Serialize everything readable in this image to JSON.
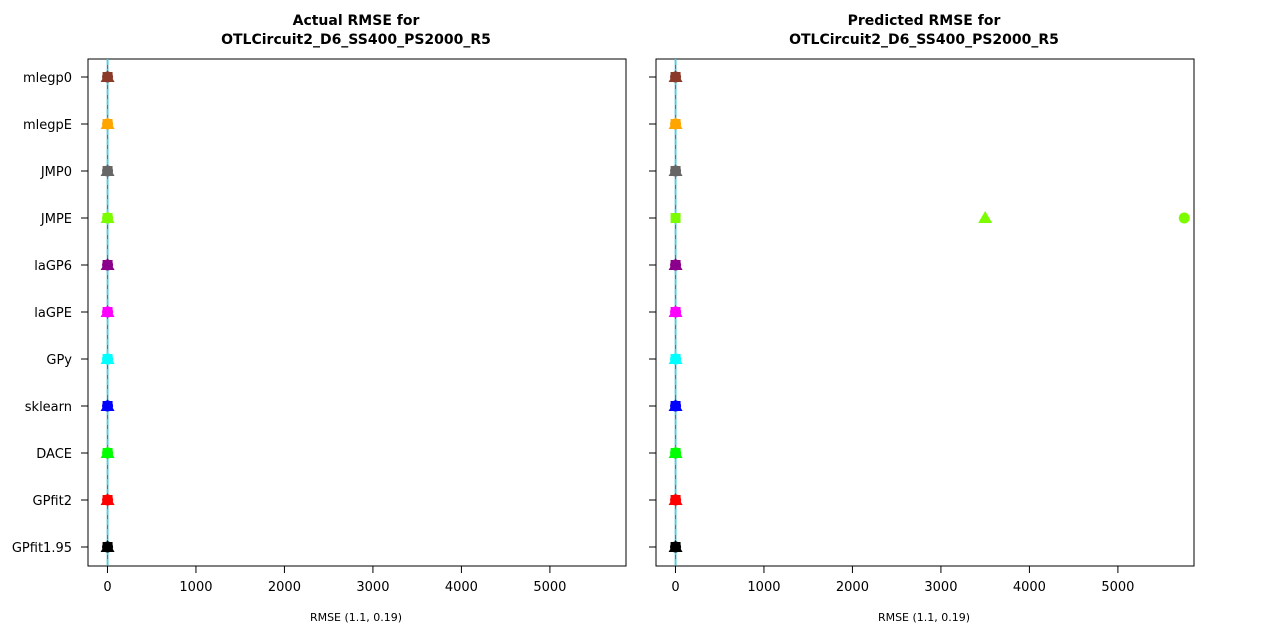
{
  "chart_data": [
    {
      "type": "scatter",
      "title_lines": [
        "Actual RMSE for",
        "OTLCircuit2_D6_SS400_PS2000_R5"
      ],
      "xlabel": "RMSE (1.1, 0.19)",
      "xlim": [
        -220,
        5860
      ],
      "xticks": [
        0,
        1000,
        2000,
        3000,
        4000,
        5000
      ],
      "categories": [
        "mlegp0",
        "mlegpE",
        "JMP0",
        "JMPE",
        "laGP6",
        "laGPE",
        "GPy",
        "sklearn",
        "DACE",
        "GPfit2",
        "GPfit1.95"
      ],
      "colors": [
        "#8b3a2a",
        "#ffa500",
        "#666666",
        "#7cfc00",
        "#8b008b",
        "#ff00ff",
        "#00ffff",
        "#0000ff",
        "#00ff00",
        "#ff0000",
        "#000000"
      ],
      "reference_line": 1.1,
      "series": [
        {
          "marker": "square",
          "values": [
            1.1,
            1.1,
            1.1,
            1.1,
            1.1,
            1.1,
            1.1,
            1.1,
            1.1,
            1.1,
            1.1
          ]
        },
        {
          "marker": "triangle",
          "values": [
            1.2,
            1.2,
            1.2,
            1.2,
            1.2,
            1.2,
            1.2,
            1.2,
            1.2,
            1.2,
            1.2
          ]
        },
        {
          "marker": "circle",
          "values": [
            1.0,
            1.0,
            1.0,
            1.0,
            1.0,
            1.0,
            1.0,
            1.0,
            1.0,
            1.0,
            1.0
          ]
        }
      ]
    },
    {
      "type": "scatter",
      "title_lines": [
        "Predicted RMSE for",
        "OTLCircuit2_D6_SS400_PS2000_R5"
      ],
      "xlabel": "RMSE (1.1, 0.19)",
      "xlim": [
        -220,
        5860
      ],
      "xticks": [
        0,
        1000,
        2000,
        3000,
        4000,
        5000
      ],
      "categories": [
        "mlegp0",
        "mlegpE",
        "JMP0",
        "JMPE",
        "laGP6",
        "laGPE",
        "GPy",
        "sklearn",
        "DACE",
        "GPfit2",
        "GPfit1.95"
      ],
      "colors": [
        "#8b3a2a",
        "#ffa500",
        "#666666",
        "#7cfc00",
        "#8b008b",
        "#ff00ff",
        "#00ffff",
        "#0000ff",
        "#00ff00",
        "#ff0000",
        "#000000"
      ],
      "reference_line": 1.1,
      "series": [
        {
          "marker": "square",
          "values": [
            1.1,
            1.1,
            1.1,
            1.1,
            1.1,
            1.1,
            1.1,
            1.1,
            1.1,
            1.1,
            1.1
          ]
        },
        {
          "marker": "triangle",
          "values": [
            1.2,
            1.2,
            1.2,
            3500,
            1.2,
            1.2,
            1.2,
            1.2,
            1.2,
            1.2,
            1.2
          ]
        },
        {
          "marker": "circle",
          "values": [
            1.0,
            1.0,
            1.0,
            5750,
            1.0,
            1.0,
            1.0,
            1.0,
            1.0,
            1.0,
            1.0
          ]
        }
      ]
    }
  ]
}
